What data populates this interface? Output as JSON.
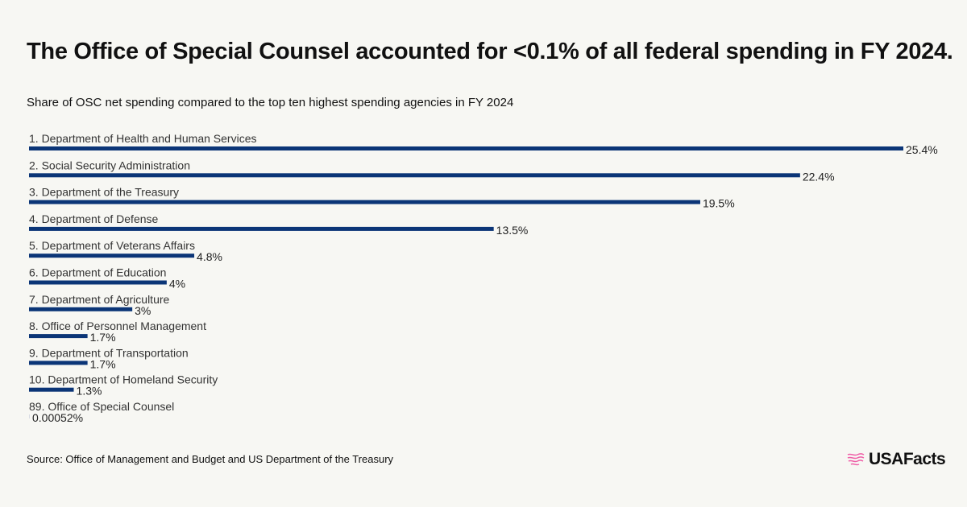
{
  "title": "The Office of Special Counsel accounted for <0.1% of all federal spending in FY 2024.",
  "subtitle": "Share of OSC net spending compared to the top ten highest spending agencies in FY 2024",
  "source": "Source: Office of Management and Budget and US Department of the Treasury",
  "logo_text": "USAFacts",
  "colors": {
    "bar": "#0b3577",
    "background": "#f7f7f3",
    "logo_accent": "#ef5fa7"
  },
  "chart_data": {
    "type": "bar",
    "orientation": "horizontal",
    "unit": "%",
    "categories": [
      "1. Department of Health and Human Services",
      "2. Social Security Administration",
      "3. Department of the Treasury",
      "4. Department of Defense",
      "5. Department of Veterans Affairs",
      "6. Department of Education",
      "7. Department of Agriculture",
      "8. Office of Personnel Management",
      "9. Department of Transportation",
      "10. Department of Homeland Security",
      "89. Office of Special Counsel"
    ],
    "values": [
      25.4,
      22.4,
      19.5,
      13.5,
      4.8,
      4,
      3,
      1.7,
      1.7,
      1.3,
      0.00052
    ],
    "labels": [
      "25.4%",
      "22.4%",
      "19.5%",
      "13.5%",
      "4.8%",
      "4%",
      "3%",
      "1.7%",
      "1.7%",
      "1.3%",
      "0.00052%"
    ],
    "xlim": [
      0,
      25.4
    ],
    "grid": false
  }
}
